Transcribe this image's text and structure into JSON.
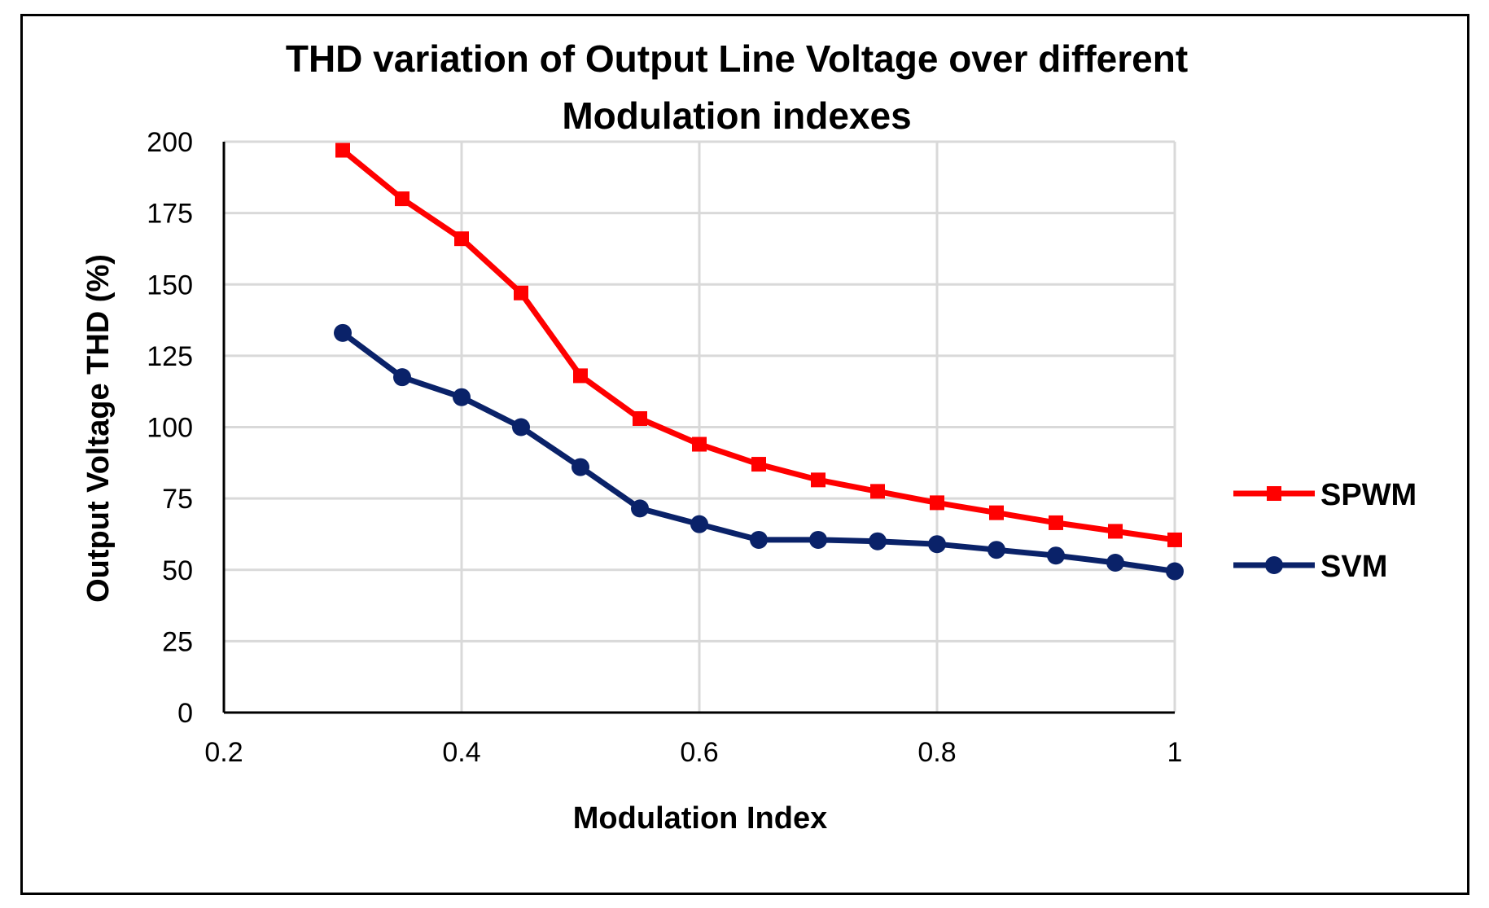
{
  "chart_data": {
    "type": "line",
    "title_lines": [
      "THD variation of Output Line Voltage over different",
      "Modulation indexes"
    ],
    "xlabel": "Modulation Index",
    "ylabel": "Output Voltage THD (%)",
    "xlim": [
      0.2,
      1
    ],
    "ylim": [
      0,
      200
    ],
    "x_ticks": [
      0.2,
      0.4,
      0.6,
      0.8,
      1
    ],
    "x_tick_labels": [
      "0.2",
      "0.4",
      "0.6",
      "0.8",
      "1"
    ],
    "y_ticks": [
      0,
      25,
      50,
      75,
      100,
      125,
      150,
      175,
      200
    ],
    "y_tick_labels": [
      "0",
      "25",
      "50",
      "75",
      "100",
      "125",
      "150",
      "175",
      "200"
    ],
    "grid": true,
    "legend_position": "right",
    "series": [
      {
        "name": "SPWM",
        "color": "#ff0000",
        "marker": "square",
        "x": [
          0.3,
          0.35,
          0.4,
          0.45,
          0.5,
          0.55,
          0.6,
          0.65,
          0.7,
          0.75,
          0.8,
          0.85,
          0.9,
          0.95,
          1
        ],
        "values": [
          197,
          180,
          166,
          147,
          118,
          103,
          94,
          87,
          81.5,
          77.5,
          73.5,
          70,
          66.5,
          63.5,
          60.5
        ]
      },
      {
        "name": "SVM",
        "color": "#0a2269",
        "marker": "circle",
        "x": [
          0.3,
          0.35,
          0.4,
          0.45,
          0.5,
          0.55,
          0.6,
          0.65,
          0.7,
          0.75,
          0.8,
          0.85,
          0.9,
          0.95,
          1
        ],
        "values": [
          133,
          117.5,
          110.5,
          100,
          86,
          71.5,
          66,
          60.5,
          60.5,
          60,
          59,
          57,
          55,
          52.5,
          49.5
        ]
      }
    ]
  }
}
